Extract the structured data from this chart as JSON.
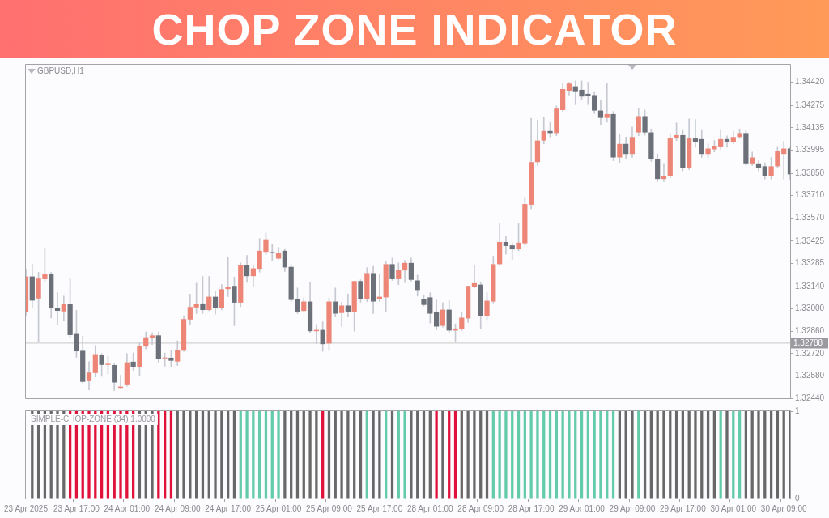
{
  "chart_data": [
    {
      "type": "candlestick",
      "title": "CHOP ZONE INDICATOR",
      "subtitle": "GBPUSD,H1",
      "categories": [
        null,
        null,
        null,
        null,
        null,
        null,
        null,
        null,
        null,
        null,
        null,
        null,
        null,
        null,
        null,
        null,
        null,
        null,
        null,
        null,
        null,
        null,
        null,
        null,
        null,
        null,
        null,
        null,
        null,
        null,
        null,
        null,
        null,
        null,
        null,
        null,
        null,
        null,
        null,
        null,
        null,
        null,
        null,
        null,
        null,
        null,
        null,
        null,
        null,
        null,
        null,
        null,
        null,
        null,
        null,
        null,
        null,
        null,
        null,
        null,
        null,
        null,
        null,
        null,
        null,
        null,
        null,
        null,
        null,
        null,
        null,
        null,
        null,
        null,
        null,
        null,
        null,
        null,
        null,
        null,
        null,
        null,
        null,
        null,
        null,
        null,
        null,
        null,
        null,
        null,
        null,
        null,
        null,
        null,
        null,
        null,
        null,
        null,
        null,
        null,
        null,
        null,
        null,
        null,
        null,
        null,
        null,
        null,
        null,
        null,
        null,
        null,
        null,
        null,
        null,
        null,
        null,
        null,
        null,
        null,
        null,
        null
      ],
      "ohlc": [
        [
          1.3298,
          1.3325,
          1.32953,
          1.33203
        ],
        [
          1.33203,
          1.3328,
          1.33009,
          1.33052
        ],
        [
          1.33065,
          1.33229,
          1.32797,
          1.3319
        ],
        [
          1.33186,
          1.33381,
          1.33172,
          1.33216
        ],
        [
          1.33216,
          1.33229,
          1.32942,
          1.33005
        ],
        [
          1.33008,
          1.33101,
          1.32899,
          1.32988
        ],
        [
          1.32984,
          1.3308,
          1.32925,
          1.33029
        ],
        [
          1.33029,
          1.3319,
          1.32823,
          1.32836
        ],
        [
          1.32843,
          1.32991,
          1.32696,
          1.32734
        ],
        [
          1.32737,
          1.3283,
          1.32535,
          1.32543
        ],
        [
          1.32547,
          1.32669,
          1.32492,
          1.32601
        ],
        [
          1.32598,
          1.32771,
          1.32573,
          1.32716
        ],
        [
          1.32711,
          1.3272,
          1.32577,
          1.32649
        ],
        [
          1.32649,
          1.32703,
          1.32594,
          1.32656
        ],
        [
          1.32648,
          1.32656,
          1.32488,
          1.32539
        ],
        [
          1.32505,
          1.32584,
          1.32501,
          1.32513
        ],
        [
          1.32522,
          1.3272,
          1.32516,
          1.32665
        ],
        [
          1.32669,
          1.32724,
          1.32615,
          1.32636
        ],
        [
          1.32636,
          1.32788,
          1.32581,
          1.32766
        ],
        [
          1.32764,
          1.32856,
          1.32748,
          1.32822
        ],
        [
          1.32819,
          1.32851,
          1.32776,
          1.32834
        ],
        [
          1.32834,
          1.32856,
          1.32666,
          1.32687
        ],
        [
          1.3269,
          1.32724,
          1.32641,
          1.32694
        ],
        [
          1.32694,
          1.32741,
          1.32636,
          1.32675
        ],
        [
          1.3267,
          1.328,
          1.32645,
          1.32741
        ],
        [
          1.32738,
          1.32957,
          1.32733,
          1.32936
        ],
        [
          1.32933,
          1.33093,
          1.32899,
          1.33012
        ],
        [
          1.33009,
          1.33161,
          1.32971,
          1.33029
        ],
        [
          1.33034,
          1.33203,
          1.32971,
          1.32993
        ],
        [
          1.32993,
          1.33203,
          1.32988,
          1.33076
        ],
        [
          1.33076,
          1.3311,
          1.32967,
          1.33005
        ],
        [
          1.33005,
          1.33152,
          1.32993,
          1.33123
        ],
        [
          1.33124,
          1.33322,
          1.33077,
          1.3314
        ],
        [
          1.33144,
          1.33199,
          1.32895,
          1.33039
        ],
        [
          1.33039,
          1.33288,
          1.33014,
          1.33275
        ],
        [
          1.33275,
          1.33335,
          1.33166,
          1.33205
        ],
        [
          1.33205,
          1.33271,
          1.33141,
          1.33254
        ],
        [
          1.33251,
          1.33441,
          1.3323,
          1.33364
        ],
        [
          1.33357,
          1.33475,
          1.3334,
          1.33436
        ],
        [
          1.33356,
          1.33403,
          1.33304,
          1.33349
        ],
        [
          1.33315,
          1.33386,
          1.3331,
          1.33352
        ],
        [
          1.33364,
          1.33373,
          1.33234,
          1.3326
        ],
        [
          1.33263,
          1.33271,
          1.33048,
          1.33056
        ],
        [
          1.33063,
          1.33131,
          1.3297,
          1.32983
        ],
        [
          1.32987,
          1.33068,
          1.32979,
          1.33046
        ],
        [
          1.33046,
          1.33169,
          1.32851,
          1.3286
        ],
        [
          1.3286,
          1.32902,
          1.32783,
          1.32868
        ],
        [
          1.32868,
          1.32919,
          1.32734,
          1.32779
        ],
        [
          1.32783,
          1.33068,
          1.32738,
          1.33046
        ],
        [
          1.33046,
          1.33131,
          1.32949,
          1.3297
        ],
        [
          1.32974,
          1.33042,
          1.32889,
          1.33021
        ],
        [
          1.33021,
          1.33093,
          1.32949,
          1.32983
        ],
        [
          1.32983,
          1.33174,
          1.3286,
          1.33174
        ],
        [
          1.33174,
          1.33182,
          1.33042,
          1.33059
        ],
        [
          1.33059,
          1.33258,
          1.33046,
          1.33224
        ],
        [
          1.33224,
          1.33267,
          1.3297,
          1.33046
        ],
        [
          1.33059,
          1.33216,
          1.33046,
          1.33076
        ],
        [
          1.33072,
          1.33297,
          1.32979,
          1.3328
        ],
        [
          1.3328,
          1.33318,
          1.33178,
          1.33186
        ],
        [
          1.33186,
          1.33288,
          1.33152,
          1.33246
        ],
        [
          1.33241,
          1.33305,
          1.33165,
          1.33288
        ],
        [
          1.33288,
          1.33318,
          1.33174,
          1.33182
        ],
        [
          1.33178,
          1.33212,
          1.3308,
          1.33118
        ],
        [
          1.33063,
          1.33089,
          1.33017,
          1.33025
        ],
        [
          1.33072,
          1.33101,
          1.32911,
          1.3297
        ],
        [
          1.32983,
          1.33055,
          1.32868,
          1.32889
        ],
        [
          1.32894,
          1.33038,
          1.32885,
          1.32995
        ],
        [
          1.32995,
          1.33051,
          1.32851,
          1.32864
        ],
        [
          1.32864,
          1.32906,
          1.32792,
          1.32877
        ],
        [
          1.32873,
          1.32979,
          1.32864,
          1.32945
        ],
        [
          1.3294,
          1.33144,
          1.32915,
          1.33144
        ],
        [
          1.3314,
          1.33271,
          1.33131,
          1.33161
        ],
        [
          1.33152,
          1.33165,
          1.32873,
          1.32953
        ],
        [
          1.32953,
          1.33101,
          1.32932,
          1.33051
        ],
        [
          1.33046,
          1.3333,
          1.33038,
          1.3328
        ],
        [
          1.3328,
          1.33538,
          1.33271,
          1.33419
        ],
        [
          1.33419,
          1.33458,
          1.33343,
          1.33394
        ],
        [
          1.33398,
          1.33415,
          1.33309,
          1.33373
        ],
        [
          1.33373,
          1.33534,
          1.33364,
          1.33415
        ],
        [
          1.33411,
          1.33695,
          1.33398,
          1.33657
        ],
        [
          1.33653,
          1.34195,
          1.33627,
          1.3392
        ],
        [
          1.3392,
          1.34183,
          1.33899,
          1.34055
        ],
        [
          1.34055,
          1.34204,
          1.34034,
          1.34115
        ],
        [
          1.34115,
          1.3417,
          1.34077,
          1.34102
        ],
        [
          1.34102,
          1.34272,
          1.34085,
          1.34255
        ],
        [
          1.34246,
          1.34416,
          1.34238,
          1.34378
        ],
        [
          1.34366,
          1.3442,
          1.3434,
          1.34412
        ],
        [
          1.34395,
          1.34429,
          1.3428,
          1.34359
        ],
        [
          1.34373,
          1.34429,
          1.3431,
          1.34331
        ],
        [
          1.34348,
          1.3442,
          1.3428,
          1.34337
        ],
        [
          1.3434,
          1.34357,
          1.34225,
          1.34243
        ],
        [
          1.34243,
          1.34306,
          1.34153,
          1.34197
        ],
        [
          1.34197,
          1.34412,
          1.3417,
          1.34221
        ],
        [
          1.34221,
          1.34238,
          1.33928,
          1.33949
        ],
        [
          1.33949,
          1.34098,
          1.33916,
          1.34034
        ],
        [
          1.34034,
          1.34077,
          1.33941,
          1.33971
        ],
        [
          1.33971,
          1.3414,
          1.33949,
          1.34077
        ],
        [
          1.34106,
          1.34255,
          1.34085,
          1.34208
        ],
        [
          1.34208,
          1.34246,
          1.34089,
          1.34106
        ],
        [
          1.34106,
          1.34128,
          1.33924,
          1.33941
        ],
        [
          1.33941,
          1.33971,
          1.33797,
          1.33814
        ],
        [
          1.33814,
          1.33907,
          1.33797,
          1.33831
        ],
        [
          1.33831,
          1.34098,
          1.33822,
          1.34068
        ],
        [
          1.34068,
          1.34166,
          1.34055,
          1.34089
        ],
        [
          1.34089,
          1.34119,
          1.33865,
          1.33882
        ],
        [
          1.33882,
          1.34191,
          1.33873,
          1.34068
        ],
        [
          1.34068,
          1.34187,
          1.34013,
          1.34043
        ],
        [
          1.34064,
          1.34119,
          1.33949,
          1.33971
        ],
        [
          1.33971,
          1.34034,
          1.33949,
          1.34005
        ],
        [
          1.34,
          1.34055,
          1.33983,
          1.34022
        ],
        [
          1.34013,
          1.34119,
          1.34,
          1.34064
        ],
        [
          1.34064,
          1.34085,
          1.34013,
          1.34043
        ],
        [
          1.34047,
          1.34111,
          1.34034,
          1.34077
        ],
        [
          1.34077,
          1.34128,
          1.34068,
          1.34102
        ],
        [
          1.34102,
          1.34119,
          1.33899,
          1.33907
        ],
        [
          1.33907,
          1.33983,
          1.33899,
          1.33949
        ],
        [
          1.33907,
          1.33928,
          1.33865,
          1.33886
        ],
        [
          1.33894,
          1.33916,
          1.33814,
          1.33831
        ],
        [
          1.33831,
          1.33949,
          1.33814,
          1.33894
        ],
        [
          1.33894,
          1.34013,
          1.33882,
          1.33988
        ],
        [
          1.33971,
          1.34051,
          1.33814,
          1.34005
        ],
        [
          1.34005,
          1.34013,
          1.33805,
          1.33843
        ]
      ],
      "colors": [
        "#ee8678",
        "#6b7079",
        "#ee8678",
        "#ee8678",
        "#6b7079",
        "#6b7079",
        "#ee8678",
        "#6b7079",
        "#6b7079",
        "#6b7079",
        "#ee8678",
        "#ee8678",
        "#6b7079",
        "#ee8678",
        "#6b7079",
        "#ee8678",
        "#ee8678",
        "#6b7079",
        "#ee8678",
        "#ee8678",
        "#ee8678",
        "#6b7079",
        "#ee8678",
        "#6b7079",
        "#ee8678",
        "#ee8678",
        "#ee8678",
        "#ee8678",
        "#6b7079",
        "#ee8678",
        "#6b7079",
        "#ee8678",
        "#ee8678",
        "#6b7079",
        "#ee8678",
        "#6b7079",
        "#ee8678",
        "#ee8678",
        "#ee8678",
        "#6b7079",
        "#ee8678",
        "#6b7079",
        "#6b7079",
        "#6b7079",
        "#ee8678",
        "#6b7079",
        "#ee8678",
        "#6b7079",
        "#ee8678",
        "#6b7079",
        "#ee8678",
        "#6b7079",
        "#ee8678",
        "#6b7079",
        "#ee8678",
        "#6b7079",
        "#ee8678",
        "#ee8678",
        "#6b7079",
        "#ee8678",
        "#ee8678",
        "#6b7079",
        "#6b7079",
        "#6b7079",
        "#6b7079",
        "#6b7079",
        "#ee8678",
        "#6b7079",
        "#ee8678",
        "#ee8678",
        "#ee8678",
        "#ee8678",
        "#6b7079",
        "#ee8678",
        "#ee8678",
        "#ee8678",
        "#6b7079",
        "#6b7079",
        "#ee8678",
        "#ee8678",
        "#ee8678",
        "#ee8678",
        "#ee8678",
        "#6b7079",
        "#ee8678",
        "#ee8678",
        "#ee8678",
        "#6b7079",
        "#6b7079",
        "#6b7079",
        "#6b7079",
        "#6b7079",
        "#ee8678",
        "#6b7079",
        "#ee8678",
        "#6b7079",
        "#ee8678",
        "#ee8678",
        "#6b7079",
        "#6b7079",
        "#6b7079",
        "#ee8678",
        "#ee8678",
        "#ee8678",
        "#6b7079",
        "#ee8678",
        "#6b7079",
        "#6b7079",
        "#ee8678",
        "#ee8678",
        "#ee8678",
        "#6b7079",
        "#ee8678",
        "#ee8678",
        "#6b7079",
        "#ee8678",
        "#6b7079",
        "#6b7079",
        "#ee8678",
        "#ee8678",
        "#ee8678",
        "#6b7079"
      ],
      "ylim": [
        1.3244,
        1.3453
      ],
      "yticks": [
        {
          "value": 1.3244,
          "label": "1.32440"
        },
        {
          "value": 1.3258,
          "label": "1.32580"
        },
        {
          "value": 1.3272,
          "label": "1.32720"
        },
        {
          "value": 1.3286,
          "label": "1.32860"
        },
        {
          "value": 1.33,
          "label": "1.33000"
        },
        {
          "value": 1.3314,
          "label": "1.33140"
        },
        1.33285,
        1.33425,
        {
          "value": 1.3357,
          "label": "1.33570"
        },
        {
          "value": 1.3371,
          "label": "1.33710"
        },
        {
          "value": 1.3385,
          "label": "1.33850"
        },
        1.33995,
        1.34135,
        1.34275,
        {
          "value": 1.3442,
          "label": "1.34420"
        }
      ],
      "tick_labels": "y",
      "ref_lines": [
        {
          "axis": "y",
          "value": 1.32788,
          "label": "1.32788",
          "color": "#c8c8c8"
        }
      ]
    },
    {
      "type": "bar",
      "title": "SIMPLE-CHOP-ZONE (34) 1.0000",
      "categories": [
        "23 Apr 2025",
        null,
        null,
        null,
        null,
        null,
        null,
        null,
        "23 Apr 17:00",
        null,
        null,
        null,
        null,
        null,
        null,
        null,
        "24 Apr 01:00",
        null,
        null,
        null,
        null,
        null,
        null,
        null,
        "24 Apr 09:00",
        null,
        null,
        null,
        null,
        null,
        null,
        null,
        "24 Apr 17:00",
        null,
        null,
        null,
        null,
        null,
        null,
        null,
        "25 Apr 01:00",
        null,
        null,
        null,
        null,
        null,
        null,
        null,
        "25 Apr 09:00",
        null,
        null,
        null,
        null,
        null,
        null,
        null,
        "25 Apr 17:00",
        null,
        null,
        null,
        null,
        null,
        null,
        null,
        "28 Apr 01:00",
        null,
        null,
        null,
        null,
        null,
        null,
        null,
        "28 Apr 09:00",
        null,
        null,
        null,
        null,
        null,
        null,
        null,
        "28 Apr 17:00",
        null,
        null,
        null,
        null,
        null,
        null,
        null,
        "29 Apr 01:00",
        null,
        null,
        null,
        null,
        null,
        null,
        null,
        "29 Apr 09:00",
        null,
        null,
        null,
        null,
        null,
        null,
        null,
        "29 Apr 17:00",
        null,
        null,
        null,
        null,
        null,
        null,
        null,
        "30 Apr 01:00",
        null,
        null,
        null,
        null,
        null,
        null,
        null,
        "30 Apr 09:00",
        null
      ],
      "values": [
        null,
        1,
        1,
        1,
        1,
        1,
        1,
        1,
        1,
        1,
        1,
        1,
        1,
        1,
        1,
        1,
        1,
        1,
        1,
        1,
        1,
        1,
        1,
        1,
        1,
        1,
        1,
        1,
        1,
        1,
        1,
        1,
        1,
        1,
        1,
        1,
        1,
        1,
        1,
        1,
        1,
        1,
        1,
        1,
        1,
        1,
        1,
        1,
        1,
        1,
        1,
        1,
        1,
        1,
        1,
        1,
        1,
        1,
        1,
        1,
        1,
        1,
        1,
        1,
        1,
        1,
        1,
        1,
        1,
        1,
        1,
        1,
        1,
        1,
        1,
        1,
        1,
        1,
        1,
        1,
        1,
        1,
        1,
        1,
        1,
        1,
        1,
        1,
        1,
        1,
        1,
        1,
        1,
        1,
        1,
        1,
        1,
        1,
        1,
        1,
        1,
        1,
        1,
        1,
        1,
        1,
        1,
        1,
        1,
        1,
        1,
        1,
        1,
        1,
        1,
        1,
        1,
        1,
        1,
        1,
        1,
        1
      ],
      "colors": [
        "#686868",
        "#686868",
        "#686868",
        "#686868",
        "#686868",
        "#686868",
        "#686868",
        "#e0113a",
        "#e0113a",
        "#e0113a",
        "#e0113a",
        "#e0113a",
        "#e0113a",
        "#e0113a",
        "#e0113a",
        "#e0113a",
        "#e0113a",
        "#e0113a",
        "#686868",
        "#686868",
        "#686868",
        "#e0113a",
        "#e0113a",
        "#e0113a",
        "#686868",
        "#686868",
        "#686868",
        "#686868",
        "#686868",
        "#686868",
        "#686868",
        "#686868",
        "#686868",
        "#686868",
        "#63cba8",
        "#63cba8",
        "#63cba8",
        "#63cba8",
        "#63cba8",
        "#63cba8",
        "#63cba8",
        "#686868",
        "#686868",
        "#686868",
        "#686868",
        "#686868",
        "#686868",
        "#e0113a",
        "#686868",
        "#686868",
        "#686868",
        "#686868",
        "#686868",
        "#686868",
        "#63cba8",
        "#686868",
        "#686868",
        "#63cba8",
        "#686868",
        "#63cba8",
        "#63cba8",
        "#686868",
        "#686868",
        "#686868",
        "#686868",
        "#e0113a",
        "#686868",
        "#e0113a",
        "#e0113a",
        "#686868",
        "#686868",
        "#686868",
        "#686868",
        "#686868",
        "#63cba8",
        "#63cba8",
        "#63cba8",
        "#63cba8",
        "#63cba8",
        "#63cba8",
        "#63cba8",
        "#63cba8",
        "#63cba8",
        "#63cba8",
        "#63cba8",
        "#63cba8",
        "#63cba8",
        "#63cba8",
        "#63cba8",
        "#63cba8",
        "#63cba8",
        "#63cba8",
        "#63cba8",
        "#63cba8",
        "#686868",
        "#686868",
        "#686868",
        "#63cba8",
        "#686868",
        "#686868",
        "#686868",
        "#686868",
        "#686868",
        "#686868",
        "#686868",
        "#686868",
        "#686868",
        "#686868",
        "#686868",
        "#686868",
        "#63cba8",
        "#686868",
        "#63cba8",
        "#63cba8",
        "#686868",
        "#686868",
        "#686868",
        "#686868",
        "#686868",
        "#686868",
        "#686868",
        "#686868"
      ],
      "ylim": [
        0,
        1
      ],
      "yticks": [
        0,
        1
      ]
    }
  ]
}
